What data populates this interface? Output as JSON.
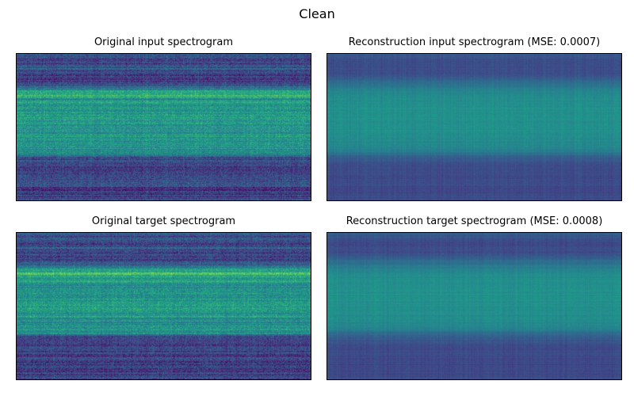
{
  "figure": {
    "title": "Clean"
  },
  "chart_data": [
    {
      "type": "heatmap",
      "title": "Original input spectrogram",
      "axes_visible": false,
      "colormap": "viridis",
      "pattern": "sharp",
      "band_profile": [
        [
          0.0,
          0.26
        ],
        [
          0.06,
          0.2
        ],
        [
          0.1,
          0.28
        ],
        [
          0.14,
          0.16
        ],
        [
          0.2,
          0.2
        ],
        [
          0.24,
          0.45
        ],
        [
          0.28,
          0.68
        ],
        [
          0.31,
          0.5
        ],
        [
          0.33,
          0.62
        ],
        [
          0.36,
          0.5
        ],
        [
          0.4,
          0.55
        ],
        [
          0.46,
          0.52
        ],
        [
          0.52,
          0.55
        ],
        [
          0.58,
          0.52
        ],
        [
          0.64,
          0.5
        ],
        [
          0.69,
          0.46
        ],
        [
          0.71,
          0.22
        ],
        [
          0.8,
          0.18
        ],
        [
          0.86,
          0.22
        ],
        [
          0.92,
          0.18
        ],
        [
          1.0,
          0.2
        ]
      ]
    },
    {
      "type": "heatmap",
      "title": "Reconstruction input spectrogram (MSE: 0.0007)",
      "axes_visible": false,
      "colormap": "viridis",
      "pattern": "smooth",
      "band_profile": [
        [
          0.0,
          0.28
        ],
        [
          0.07,
          0.22
        ],
        [
          0.14,
          0.24
        ],
        [
          0.22,
          0.4
        ],
        [
          0.28,
          0.48
        ],
        [
          0.35,
          0.5
        ],
        [
          0.5,
          0.5
        ],
        [
          0.6,
          0.48
        ],
        [
          0.66,
          0.44
        ],
        [
          0.7,
          0.3
        ],
        [
          0.76,
          0.24
        ],
        [
          0.85,
          0.22
        ],
        [
          1.0,
          0.22
        ]
      ]
    },
    {
      "type": "heatmap",
      "title": "Original target spectrogram",
      "axes_visible": false,
      "colormap": "viridis",
      "pattern": "sharp",
      "band_profile": [
        [
          0.0,
          0.26
        ],
        [
          0.06,
          0.2
        ],
        [
          0.1,
          0.28
        ],
        [
          0.14,
          0.16
        ],
        [
          0.2,
          0.2
        ],
        [
          0.24,
          0.45
        ],
        [
          0.28,
          0.68
        ],
        [
          0.31,
          0.5
        ],
        [
          0.33,
          0.62
        ],
        [
          0.36,
          0.5
        ],
        [
          0.4,
          0.55
        ],
        [
          0.46,
          0.52
        ],
        [
          0.52,
          0.55
        ],
        [
          0.58,
          0.52
        ],
        [
          0.64,
          0.5
        ],
        [
          0.69,
          0.46
        ],
        [
          0.71,
          0.22
        ],
        [
          0.8,
          0.18
        ],
        [
          0.86,
          0.22
        ],
        [
          0.92,
          0.18
        ],
        [
          1.0,
          0.2
        ]
      ]
    },
    {
      "type": "heatmap",
      "title": "Reconstruction target spectrogram (MSE: 0.0008)",
      "axes_visible": false,
      "colormap": "viridis",
      "pattern": "smooth",
      "band_profile": [
        [
          0.0,
          0.28
        ],
        [
          0.07,
          0.22
        ],
        [
          0.14,
          0.24
        ],
        [
          0.22,
          0.4
        ],
        [
          0.28,
          0.48
        ],
        [
          0.35,
          0.5
        ],
        [
          0.5,
          0.5
        ],
        [
          0.6,
          0.48
        ],
        [
          0.66,
          0.44
        ],
        [
          0.7,
          0.3
        ],
        [
          0.76,
          0.24
        ],
        [
          0.85,
          0.22
        ],
        [
          1.0,
          0.22
        ]
      ]
    }
  ]
}
